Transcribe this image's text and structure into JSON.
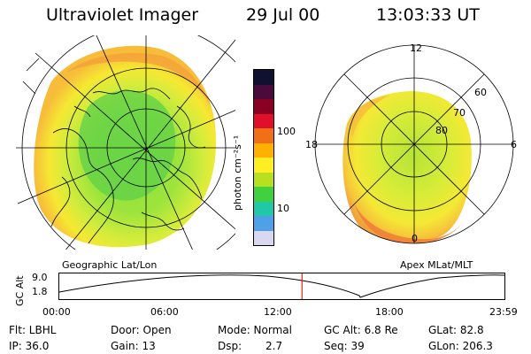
{
  "header": {
    "instrument": "Ultraviolet Imager",
    "date": "29 Jul 00",
    "time": "13:03:33 UT"
  },
  "left_panel": {
    "caption": "Geographic Lat/Lon"
  },
  "right_panel": {
    "caption": "Apex MLat/MLT",
    "mlt_labels": [
      "12",
      "18",
      "6",
      "0"
    ],
    "mlat_labels": [
      "60",
      "70",
      "80"
    ]
  },
  "colorbar": {
    "unit_label": "photon cm⁻²s⁻¹",
    "ticks": [
      "100",
      "10"
    ],
    "colors": [
      "#101030",
      "#4a0a3c",
      "#8a0022",
      "#e0102a",
      "#f0701a",
      "#ffb000",
      "#ffee22",
      "#b8e020",
      "#40d040",
      "#20c8a8",
      "#50a0e8",
      "#d8d8f0"
    ]
  },
  "altitude_plot": {
    "ylabel": "GC Alt",
    "yticks": [
      "9.0",
      "1.8"
    ],
    "xticks": [
      "00:00",
      "06:00",
      "12:00",
      "18:00",
      "23:59"
    ],
    "marker_time_hours": 13.06,
    "marker_color": "#e02020"
  },
  "info": {
    "flt": "Flt: LBHL",
    "door": "Door: Open",
    "mode": "Mode: Normal",
    "gc_alt": "GC Alt: 6.8 Re",
    "glat": "GLat: 82.8",
    "ip": "IP: 36.0",
    "gain": "Gain: 13",
    "dsp_label": "Dsp:",
    "dsp_value": "2.7",
    "seq": "Seq: 39",
    "glon": "GLon: 206.3"
  }
}
